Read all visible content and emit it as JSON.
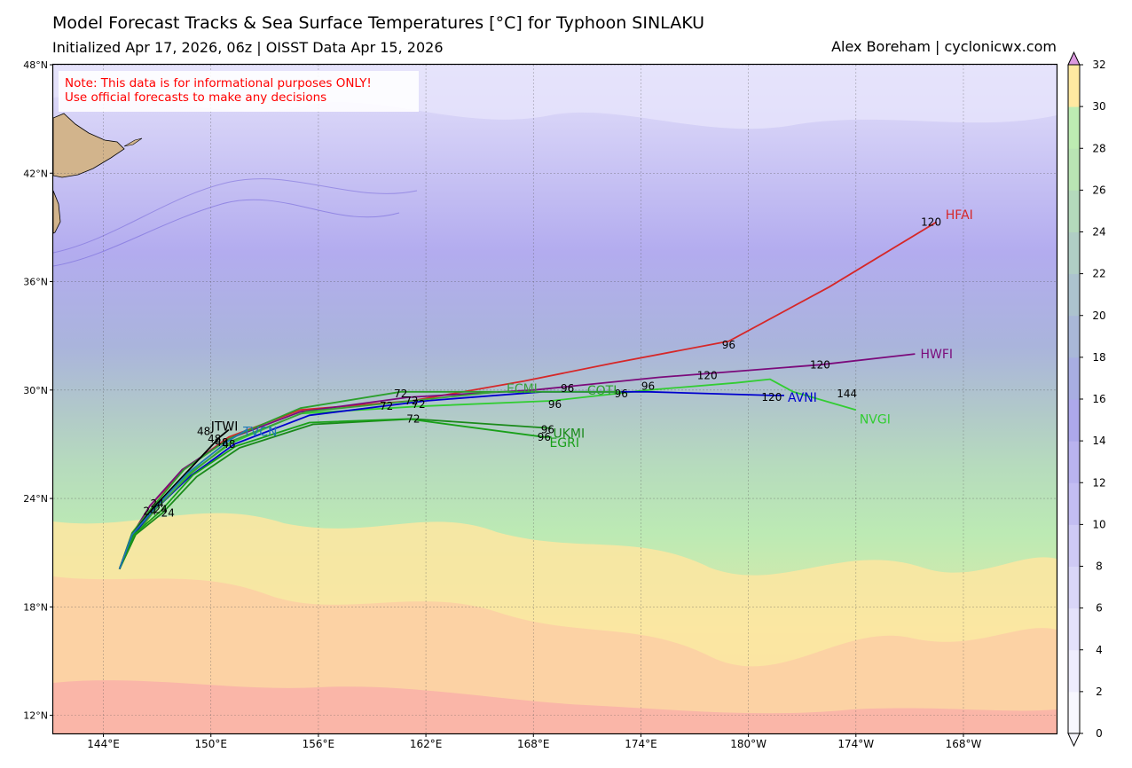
{
  "header": {
    "title": "Model Forecast Tracks & Sea Surface Temperatures [°C] for Typhoon SINLAKU",
    "subtitle": "Initialized Apr 17, 2026, 06z | OISST Data Apr 15, 2026",
    "credit": "Alex Boreham | cyclonicwx.com"
  },
  "note": {
    "line1": "Note: This data is for informational purposes ONLY!",
    "line2": "Use official forecasts to make any decisions",
    "color": "#ff0000"
  },
  "map": {
    "lon_ticks": [
      {
        "lon": 144,
        "label": "144°E"
      },
      {
        "lon": 150,
        "label": "150°E"
      },
      {
        "lon": 156,
        "label": "156°E"
      },
      {
        "lon": 162,
        "label": "162°E"
      },
      {
        "lon": 168,
        "label": "168°E"
      },
      {
        "lon": 174,
        "label": "174°E"
      },
      {
        "lon": 180,
        "label": "180°W"
      },
      {
        "lon": 186,
        "label": "174°W"
      },
      {
        "lon": 192,
        "label": "168°W"
      }
    ],
    "lat_ticks": [
      {
        "lat": 48,
        "label": "48°N"
      },
      {
        "lat": 42,
        "label": "42°N"
      },
      {
        "lat": 36,
        "label": "36°N"
      },
      {
        "lat": 30,
        "label": "30°N"
      },
      {
        "lat": 24,
        "label": "24°N"
      },
      {
        "lat": 18,
        "label": "18°N"
      },
      {
        "lat": 12,
        "label": "12°N"
      }
    ],
    "lon_range": [
      141.2,
      197.2
    ],
    "lat_range": [
      11.0,
      48.0
    ],
    "land_color": "#d2b48c"
  },
  "colorbar": {
    "ticks": [
      0,
      2,
      4,
      6,
      8,
      10,
      12,
      14,
      16,
      18,
      20,
      22,
      24,
      26,
      28,
      30,
      32
    ],
    "colors": [
      "#f7f7fe",
      "#eeedfd",
      "#e4e2fb",
      "#d9d6f8",
      "#cfcaf5",
      "#c3bdf2",
      "#b9b3ef",
      "#ada8eb",
      "#a8aee2",
      "#a9b8d8",
      "#acc3ce",
      "#b0cec5",
      "#b4d9bc",
      "#b9e4b4",
      "#bdecb2",
      "#ffe9a1",
      "#fcd0a4",
      "#fab8a9",
      "#f3a2b8",
      "#dc9ae0"
    ]
  },
  "models": [
    {
      "name": "HFAI",
      "color": "#d62728"
    },
    {
      "name": "HWFI",
      "color": "#7b0a7b"
    },
    {
      "name": "NVGI",
      "color": "#32cd32"
    },
    {
      "name": "AVNI",
      "color": "#0000cd"
    },
    {
      "name": "COTI",
      "color": "#2ca02c"
    },
    {
      "name": "ECMI",
      "color": "#3aa03a"
    },
    {
      "name": "UKMI",
      "color": "#1a8a1a"
    },
    {
      "name": "EGRI",
      "color": "#19a019"
    },
    {
      "name": "JTWI",
      "color": "#000000"
    },
    {
      "name": "TVCN",
      "color": "#1f77b4"
    }
  ],
  "hour_labels": [
    {
      "text": "120",
      "lon": 190.2,
      "lat": 39.3
    },
    {
      "text": "96",
      "lon": 178.9,
      "lat": 32.5
    },
    {
      "text": "120",
      "lon": 177.7,
      "lat": 30.8
    },
    {
      "text": "120",
      "lon": 184.0,
      "lat": 31.4
    },
    {
      "text": "144",
      "lon": 185.5,
      "lat": 29.8
    },
    {
      "text": "120",
      "lon": 181.3,
      "lat": 29.6
    },
    {
      "text": "96",
      "lon": 174.4,
      "lat": 30.2
    },
    {
      "text": "96",
      "lon": 169.9,
      "lat": 30.1
    },
    {
      "text": "96",
      "lon": 172.9,
      "lat": 29.8
    },
    {
      "text": "96",
      "lon": 169.2,
      "lat": 29.2
    },
    {
      "text": "96",
      "lon": 168.8,
      "lat": 27.8
    },
    {
      "text": "96",
      "lon": 168.6,
      "lat": 27.4
    },
    {
      "text": "72",
      "lon": 160.6,
      "lat": 29.8
    },
    {
      "text": "72",
      "lon": 161.2,
      "lat": 29.4
    },
    {
      "text": "72",
      "lon": 159.8,
      "lat": 29.1
    },
    {
      "text": "72",
      "lon": 161.6,
      "lat": 29.2
    },
    {
      "text": "72",
      "lon": 161.3,
      "lat": 28.4
    },
    {
      "text": "48",
      "lon": 149.6,
      "lat": 27.7
    },
    {
      "text": "48",
      "lon": 150.2,
      "lat": 27.3
    },
    {
      "text": "48",
      "lon": 151.0,
      "lat": 27.0
    },
    {
      "text": "48",
      "lon": 150.6,
      "lat": 27.1
    },
    {
      "text": "24",
      "lon": 146.6,
      "lat": 23.3
    },
    {
      "text": "24",
      "lon": 147.2,
      "lat": 23.4
    },
    {
      "text": "24",
      "lon": 147.0,
      "lat": 23.7
    },
    {
      "text": "24",
      "lon": 147.6,
      "lat": 23.2
    }
  ]
}
